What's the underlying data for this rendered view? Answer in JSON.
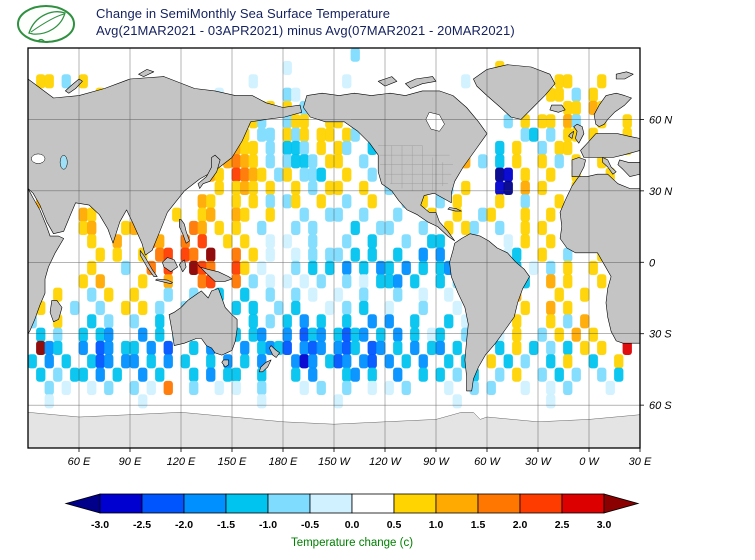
{
  "header": {
    "title_line1": "Change in SemiMonthly Sea Surface Temperature",
    "title_line2": "Avg(21MAR2021 - 03APR2021) minus Avg(07MAR2021 - 20MAR2021)",
    "title_color": "#14215f",
    "logo": "green-leaf-emblem",
    "logo_color": "#2f9140"
  },
  "chart_data": {
    "type": "heatmap",
    "title": "Change in SemiMonthly Sea Surface Temperature",
    "subtitle": "Avg(21MAR2021 - 03APR2021) minus Avg(07MAR2021 - 20MAR2021)",
    "projection": "equirectangular world map, Pacific-centered",
    "lon_range": [
      30,
      390
    ],
    "lat_range": [
      90,
      -78
    ],
    "grid_on": true,
    "x_ticks": [
      {
        "label": "60 E",
        "lon": 60
      },
      {
        "label": "90 E",
        "lon": 90
      },
      {
        "label": "120 E",
        "lon": 120
      },
      {
        "label": "150 E",
        "lon": 150
      },
      {
        "label": "180 E",
        "lon": 180
      },
      {
        "label": "150 W",
        "lon": 210
      },
      {
        "label": "120 W",
        "lon": 240
      },
      {
        "label": "90 W",
        "lon": 270
      },
      {
        "label": "60 W",
        "lon": 300
      },
      {
        "label": "30 W",
        "lon": 330
      },
      {
        "label": "0 W",
        "lon": 360
      },
      {
        "label": "30 E",
        "lon": 390
      }
    ],
    "y_ticks": [
      {
        "label": "60 N",
        "lat": 60
      },
      {
        "label": "30 N",
        "lat": 30
      },
      {
        "label": "0",
        "lat": 0
      },
      {
        "label": "30 S",
        "lat": -30
      },
      {
        "label": "60 S",
        "lat": -60
      }
    ],
    "cell_size_deg_lon": 5,
    "value_bins": {
      "a": "< -3.0",
      "b": "-3.0 to -2.5",
      "c": "-2.5 to -2.0",
      "d": "-2.0 to -1.5",
      "e": "-1.5 to -1.0",
      "f": "-1.0 to -0.5",
      "g": "-0.5 to 0.0",
      ".": "0.0 to 0.5 (no significant change / white)",
      "h": "0.5 to 1.0",
      "i": "1.0 to 1.5",
      "j": "1.5 to 2.0",
      "k": "2.0 to 2.5",
      "l": "2.5 to 3.0",
      "m": "> 3.0"
    },
    "palette": {
      "a": "#00008b",
      "b": "#0000d0",
      "c": "#0055ff",
      "d": "#0090ff",
      "e": "#00c4f0",
      "f": "#7fdcff",
      "g": "#d0f1ff",
      "h": "#ffd400",
      "i": "#ffaa00",
      "j": "#ff7700",
      "k": "#ff3c00",
      "l": "#dd0000",
      "m": "#8b0000"
    },
    "land_color": "#c4c4c4",
    "antarctica_color": "#e4e4e4",
    "anomaly_grid_rows": [
      [
        "......",
        "......",
        "......",
        "......",
        "......",
        "......",
        "..f...",
        "......",
        "......",
        "......",
        "......",
        "......"
      ],
      [
        "......",
        "......",
        "......",
        "......",
        "......",
        "g.....",
        "......",
        "......",
        "......",
        ".h....",
        "......",
        "......"
      ],
      [
        ".hh.f.",
        "h.....",
        "......",
        "......",
        "..g...",
        "......",
        ".g....",
        "......",
        "...g..",
        "......",
        "..hh..",
        ".h...."
      ],
      [
        "f.....",
        "..h...",
        ".f....",
        "....g.",
        "......",
        "fg....",
        "......",
        "......",
        "......",
        "....h.",
        ".hh.f.",
        "h....."
      ],
      [
        "......",
        "......",
        "......",
        "......",
        "f..hh.",
        "h.f...",
        "......",
        "......",
        "......",
        "......",
        "...hh.",
        "ih...."
      ],
      [
        "......",
        "......",
        "......",
        "......",
        ".hhf..",
        "fhh..h",
        "h.f...",
        "......",
        "......",
        "..f.h.",
        "hh.if.",
        ".h..h."
      ],
      [
        "......",
        "......",
        "......",
        "......",
        "hh.ff.",
        "hfh.hh",
        ".hf.h.",
        "f.....",
        "......",
        "....fe",
        ".f.hh.",
        "h...h."
      ],
      [
        "......",
        "......",
        "......",
        "......",
        "ihh.f.",
        "eef.h.",
        "hf..e.",
        "e.f...",
        "......",
        ".e.h..",
        "f.hh..",
        "..h.h."
      ],
      [
        "......",
        "......",
        "......",
        "..h..i",
        "jih.f.",
        "feef.h",
        "h..f..",
        "ff....",
        "...i.f",
        ".e.h..",
        "h.f.h.",
        ".h...."
      ],
      [
        "......",
        "......",
        "......",
        "...ih.",
        "kjih.f",
        "h.ffe.",
        ".h..f.",
        ".ff...",
        "......",
        ".ab.h.",
        ".h..h.",
        "..h..."
      ],
      [
        "......",
        "......",
        "......",
        "....h.",
        "hih.h.",
        ".h.f.h",
        "h..h..",
        "f.h...",
        ".f.h..",
        ".ba.i.",
        "h...hh",
        ".f...."
      ],
      [
        ".i..i.",
        "......",
        "..h...",
        "..ih..",
        "h.h.f.",
        "fh..h.",
        ".f..h.",
        "..f.h.",
        "f.h...",
        ".h..f.",
        "..h.h.",
        "h..f.."
      ],
      [
        "......",
        "ih.i..",
        ".ii..h",
        "..hi..",
        "ih..h.",
        "..f..f",
        "f..f..",
        ".f...h",
        "..h..f",
        "h...h.",
        ".h..i.",
        "..h..."
      ],
      [
        "......",
        "hi...h",
        "i.j...",
        ".ji.h.",
        "h..f..",
        ".f.f..",
        "..e..f",
        "f...f.",
        ".h.hf.",
        ".f..h.",
        "h..h..",
        ".h...."
      ],
      [
        "......",
        ".h..i.",
        "..ji..",
        "j.k..h",
        ".h..g.",
        "g..f..",
        ".f..e.",
        "..f..e",
        "e.....",
        "..g.h.",
        ".h...h",
        "..h.h."
      ],
      [
        "......",
        "..h.h.",
        ".h.jk.",
        "kj.m..",
        "j.h.g.",
        ".g.f.f",
        "f.e.e.",
        ".e..d.",
        "d.g...",
        "..ge..",
        "h..f..",
        ".h..h."
      ],
      [
        "......",
        ".h...f",
        "..j.k.",
        ".mkj..",
        "kh.g..",
        ".f.e.e",
        ".d.e.d",
        "e.d.e.",
        "ed....",
        "...e.g",
        ".f.h..",
        "h...h."
      ],
      [
        "......",
        "h.i...",
        ".h..i.",
        "..jk..",
        "j.f.g.",
        "g.g.f.",
        ".f.g.e",
        "ed.e..",
        "e.f...",
        "..h.e.",
        ".i.h..",
        ".h...."
      ],
      [
        "...h..",
        ".f.h..",
        "h...f.",
        ".f..e.",
        ".e..f.",
        ".f.g..",
        "g..f..",
        ".f..g.",
        ".g.f..",
        "h..i..",
        "..h..h",
        "......"
      ],
      [
        ".h...f",
        "..f..h",
        ".h.f..",
        "f...e.",
        "e.e..f",
        ".e...g",
        ".f.e..",
        "g...f.",
        "..g...",
        ".h..h.",
        ".i.h..",
        "......"
      ],
      [
        "f..h..",
        ".e.f..",
        "f..e.h",
        "......",
        "..e.f.",
        "e.d.e.",
        ".e..d.",
        "d..e..",
        ".e.g..",
        "f..h..",
        ".h.f.i",
        "......"
      ],
      [
        ".e.f..",
        "e.ed..",
        ".d.e.f",
        "......",
        "e.ed..",
        "d.ced.",
        "eced.e",
        ".d.e.g",
        "e..f..",
        ".g.h..",
        "f.h.i.",
        "h....."
      ],
      [
        ".mde..",
        "d.cd.e",
        "e.d.c.",
        ".e.d..",
        ".d.ede",
        "c.dcd.",
        "dce.cd",
        ".e.d.e",
        "d.e.g.",
        ".e.h.e",
        ".f.e.h",
        ".h..l."
      ],
      [
        "e.d.e.",
        ".ecd.d",
        "d.e.d.",
        "e..e.d",
        ".e.d..",
        ".dbd.e",
        "cd.dc.",
        "d.e.d.",
        ".e.e..",
        "h.e.f.",
        ".e.h..",
        "e..h.."
      ],
      [
        ".e.f.e",
        "e.d.e.",
        ".d.e..",
        ".e.d.e",
        "e..e..",
        ".e.d..",
        ".ed.e.",
        ".d..e.",
        "e.f.e.",
        ".f.h..",
        "f.e.f.",
        ".f.e.."
      ],
      [
        "..f.g.",
        ".g.f..",
        "f.g.j.",
        ".f..g.",
        "g..f..",
        "..g.f.",
        ".f..g.",
        "g.f...",
        ".g..f.",
        "f...g.",
        ".g.f..",
        "..g..."
      ],
      [
        "..g...",
        "......",
        ".g....",
        "......",
        "...g..",
        "......",
        "g.....",
        "......",
        "..g...",
        "......",
        ".g....",
        "......"
      ],
      [
        "......",
        "......",
        "......",
        "......",
        "......",
        "......",
        "......",
        "......",
        "......",
        "......",
        "......",
        "......"
      ],
      [
        "......",
        "......",
        "......",
        "......",
        "......",
        "......",
        "......",
        "......",
        "......",
        "......",
        "......",
        "......"
      ],
      [
        "......",
        "......",
        "......",
        "......",
        "......",
        "......",
        "......",
        "......",
        "......",
        "......",
        "......",
        "......"
      ]
    ],
    "colorbar": {
      "label": "Temperature change (c)",
      "label_color": "#008000",
      "ticks": [
        "-3.0",
        "-2.5",
        "-2.0",
        "-1.5",
        "-1.0",
        "-0.5",
        "0.0",
        "0.5",
        "1.0",
        "1.5",
        "2.0",
        "2.5",
        "3.0"
      ],
      "segment_colors": [
        "#00008b",
        "#0000d0",
        "#0055ff",
        "#0090ff",
        "#00c4f0",
        "#7fdcff",
        "#d0f1ff",
        "#ffffff",
        "#ffd400",
        "#ffaa00",
        "#ff7700",
        "#ff3c00",
        "#dd0000",
        "#8b0000"
      ]
    }
  }
}
